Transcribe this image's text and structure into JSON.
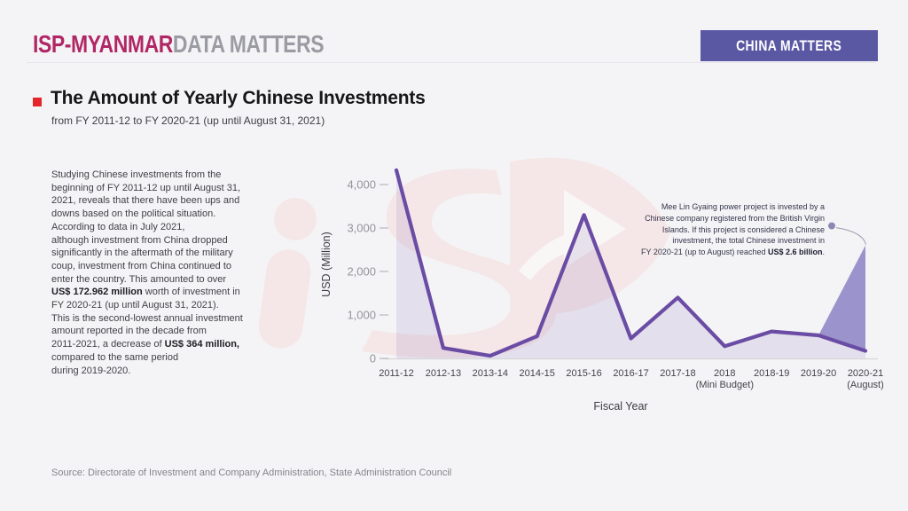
{
  "header": {
    "logo_primary": "ISP-MYANMAR",
    "logo_secondary": "DATA MATTERS",
    "badge": "CHINA MATTERS"
  },
  "title_block": {
    "title": "The Amount of Yearly Chinese Investments",
    "subtitle": "from FY 2011-12 to FY 2020-21 (up until August 31, 2021)"
  },
  "body_paragraph": [
    {
      "t": "Studying Chinese investments from the\nbeginning of FY 2011-12 up until August 31,\n2021, reveals that there have been ups and\ndowns based on the political situation.\nAccording to data in July 2021,\nalthough investment from China dropped\nsignificantly in the aftermath of the military\ncoup, investment from China continued to\nenter the country. This amounted to over\n"
    },
    {
      "t": "US$ 172.962 million",
      "b": true
    },
    {
      "t": " worth of investment in\nFY 2020-21 (up until August 31, 2021).\nThis is the second-lowest annual investment\namount reported in the decade from\n2011-2021, a decrease of "
    },
    {
      "t": "US$ 364 million,",
      "b": true
    },
    {
      "t": "\ncompared to the same period\nduring 2019-2020."
    }
  ],
  "annotation_paragraph": [
    {
      "t": "Mee Lin Gyaing power project is invested by a\nChinese company registered from the British Virgin\nIslands. If this project is considered a Chinese\ninvestment, the total Chinese investment in\nFY 2020-21 (up to August) reached "
    },
    {
      "t": "US$ 2.6 billion",
      "b": true
    },
    {
      "t": "."
    }
  ],
  "chart_data": {
    "type": "line",
    "title": "The Amount of Yearly Chinese Investments",
    "xlabel": "Fiscal Year",
    "ylabel": "USD (Million)",
    "ylim": [
      0,
      4500
    ],
    "yticks": [
      0,
      1000,
      2000,
      3000,
      4000
    ],
    "ytick_labels": [
      "0",
      "1,000",
      "2,000",
      "3,000",
      "4,000"
    ],
    "grid": false,
    "legend": "none",
    "categories": [
      {
        "label": "2011-12"
      },
      {
        "label": "2012-13"
      },
      {
        "label": "2013-14"
      },
      {
        "label": "2014-15"
      },
      {
        "label": "2015-16"
      },
      {
        "label": "2016-17"
      },
      {
        "label": "2017-18"
      },
      {
        "label": "2018",
        "sublabel": "(Mini Budget)"
      },
      {
        "label": "2018-19"
      },
      {
        "label": "2019-20"
      },
      {
        "label": "2020-21",
        "sublabel": "(August)"
      }
    ],
    "values": [
      4330,
      240,
      60,
      510,
      3300,
      460,
      1400,
      280,
      620,
      530,
      173
    ],
    "area_fill": true,
    "highlight": {
      "name": "mee-lin-gyaing-scenario",
      "from_index": 9,
      "at_index": 10,
      "value": 2600,
      "note": "If Mee Lin Gyaing project counted, FY 2020-21 (up to August) total reaches US$ 2.6 billion"
    },
    "line_color": "#6a4ca4",
    "area_color": "rgba(106,76,164,0.12)",
    "highlight_color": "rgba(139,129,196,0.85)",
    "axis_color": "#d7d7db",
    "tick_label_color": "#94949b",
    "x_label_color": "#44444b",
    "axis_title_color": "#3c3c43",
    "dot_color": "#8d87b5",
    "connector_color": "#9a99ad"
  },
  "source": "Source: Directorate of Investment and Company Administration, State Administration Council",
  "colors": {
    "background": "#f4f4f6",
    "brand_magenta": "#b12766",
    "logo_gray": "#9b9ba3",
    "badge_purple": "#5b58a3",
    "bullet_red": "#e3262b",
    "watermark_pink": "#f5e7e7"
  }
}
